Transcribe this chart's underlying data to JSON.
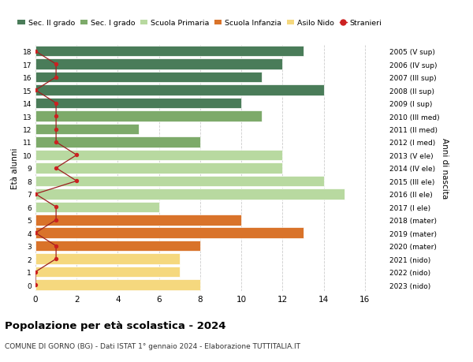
{
  "ages": [
    18,
    17,
    16,
    15,
    14,
    13,
    12,
    11,
    10,
    9,
    8,
    7,
    6,
    5,
    4,
    3,
    2,
    1,
    0
  ],
  "years": [
    "2005 (V sup)",
    "2006 (IV sup)",
    "2007 (III sup)",
    "2008 (II sup)",
    "2009 (I sup)",
    "2010 (III med)",
    "2011 (II med)",
    "2012 (I med)",
    "2013 (V ele)",
    "2014 (IV ele)",
    "2015 (III ele)",
    "2016 (II ele)",
    "2017 (I ele)",
    "2018 (mater)",
    "2019 (mater)",
    "2020 (mater)",
    "2021 (nido)",
    "2022 (nido)",
    "2023 (nido)"
  ],
  "bar_values": [
    13,
    12,
    11,
    14,
    10,
    11,
    5,
    8,
    12,
    12,
    14,
    15,
    6,
    10,
    13,
    8,
    7,
    7,
    8
  ],
  "bar_colors": [
    "#4a7c59",
    "#4a7c59",
    "#4a7c59",
    "#4a7c59",
    "#4a7c59",
    "#7daa6a",
    "#7daa6a",
    "#7daa6a",
    "#b8d9a0",
    "#b8d9a0",
    "#b8d9a0",
    "#b8d9a0",
    "#b8d9a0",
    "#d9732a",
    "#d9732a",
    "#d9732a",
    "#f5d87e",
    "#f5d87e",
    "#f5d87e"
  ],
  "stranieri_values": [
    0,
    1,
    1,
    0,
    1,
    1,
    1,
    1,
    2,
    1,
    2,
    0,
    1,
    1,
    0,
    1,
    1,
    0,
    0
  ],
  "legend_labels": [
    "Sec. II grado",
    "Sec. I grado",
    "Scuola Primaria",
    "Scuola Infanzia",
    "Asilo Nido",
    "Stranieri"
  ],
  "legend_colors": [
    "#4a7c59",
    "#7daa6a",
    "#b8d9a0",
    "#d9732a",
    "#f5d87e",
    "#cc2222"
  ],
  "title": "Popolazione per età scolastica - 2024",
  "subtitle": "COMUNE DI GORNO (BG) - Dati ISTAT 1° gennaio 2024 - Elaborazione TUTTITALIA.IT",
  "ylabel_left": "Età alunni",
  "ylabel_right": "Anni di nascita",
  "xlim": [
    0,
    17
  ],
  "xticks": [
    0,
    2,
    4,
    6,
    8,
    10,
    12,
    14,
    16
  ],
  "background_color": "#ffffff",
  "grid_color": "#cccccc"
}
